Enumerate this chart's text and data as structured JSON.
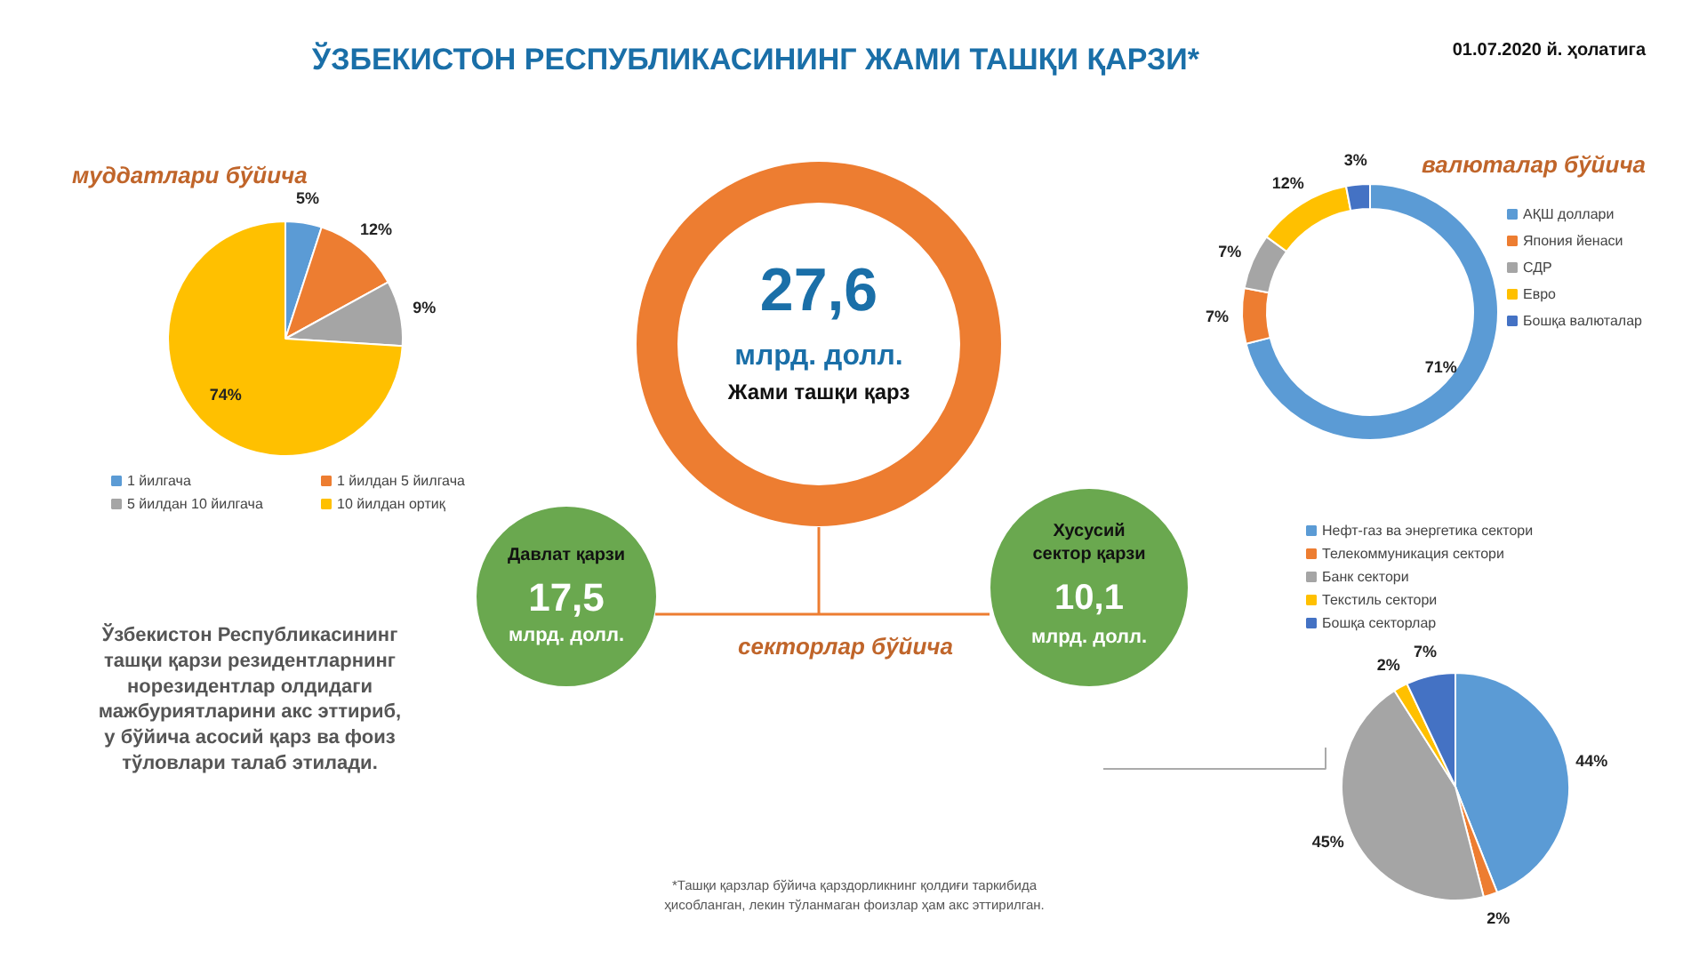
{
  "chart_data": [
    {
      "type": "other",
      "title": "ЎЗБЕКИСТОН РЕСПУБЛИКАСИНИНГ ЖАМИ ТАШҚИ ҚАРЗИ*",
      "subtitle": "01.07.2020 й. ҳолатига",
      "annotations": [
        "27,6",
        "млрд. долл.",
        "Жами ташқи қарз",
        "Давлат қарзи",
        "17,5",
        "млрд. долл.",
        "Хусусий\nсектор қарзи",
        "10,1",
        "млрд. долл.",
        "секторлар бўйича",
        "Ўзбекистон Республикасининг\nташқи қарзи резидентларнинг\nнорезидентлар олдидаги\nмажбуриятларини акс эттириб,\nу бўйича асосий қарз ва фоиз\nтўловлари талаб этилади.",
        "*Ташқи қарзлар бўйича қарздорликнинг қолдиғи таркибида\nҳисобланган, лекин тўланмаган фоизлар ҳам акс эттирилган."
      ]
    },
    {
      "type": "pie",
      "title": "муддатлари бўйича",
      "categories": [
        "1 йилгача",
        "1 йилдан 5 йилгача",
        "5 йилдан 10 йилгача",
        "10 йилдан ортиқ"
      ],
      "values": [
        5,
        12,
        9,
        74
      ],
      "value_labels": [
        "5%",
        "12%",
        "9%",
        "74%"
      ],
      "colors": [
        "#5b9bd5",
        "#ed7d31",
        "#a5a5a5",
        "#ffc000"
      ],
      "legend": "bottom"
    },
    {
      "type": "donut",
      "title": "валюталар бўйича",
      "categories": [
        "АҚШ доллари",
        "Япония йенаси",
        "СДР",
        "Евро",
        "Бошқа валюталар"
      ],
      "values": [
        71,
        7,
        7,
        12,
        3
      ],
      "value_labels": [
        "71%",
        "7%",
        "7%",
        "12%",
        "3%"
      ],
      "colors": [
        "#5b9bd5",
        "#ed7d31",
        "#a5a5a5",
        "#ffc000",
        "#4472c4"
      ],
      "legend": "right"
    },
    {
      "type": "pie",
      "categories": [
        "Нефт-газ ва энергетика сектори",
        "Телекоммуникация сектори",
        "Банк сектори",
        "Текстиль сектори",
        "Бошқа секторлар"
      ],
      "values": [
        44,
        2,
        45,
        2,
        7
      ],
      "value_labels": [
        "44%",
        "2%",
        "45%",
        "2%",
        "7%"
      ],
      "colors": [
        "#5b9bd5",
        "#ed7d31",
        "#a5a5a5",
        "#ffc000",
        "#4472c4"
      ],
      "legend": "top"
    }
  ]
}
